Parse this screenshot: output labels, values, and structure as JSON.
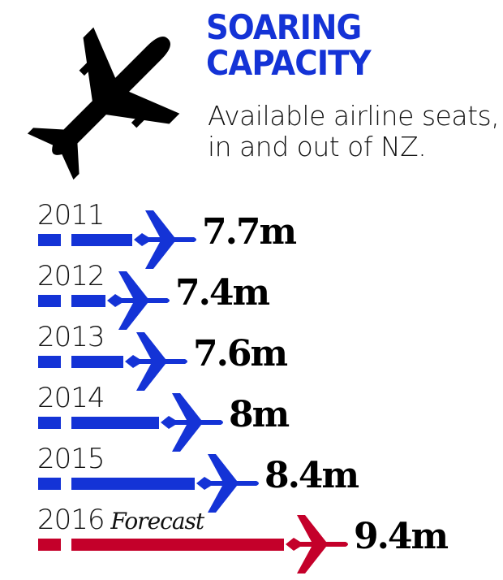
{
  "chart_data": {
    "type": "bar",
    "title": "SOARING CAPACITY",
    "subtitle": "Available airline seats, in and out of NZ.",
    "categories": [
      "2011",
      "2012",
      "2013",
      "2014",
      "2015",
      "2016"
    ],
    "category_notes": [
      "",
      "",
      "",
      "",
      "",
      "Forecast"
    ],
    "values": [
      7.7,
      7.4,
      7.6,
      8.0,
      8.4,
      9.4
    ],
    "data_labels": [
      "7.7m",
      "7.4m",
      "7.6m",
      "8m",
      "8.4m",
      "9.4m"
    ],
    "unit": "million seats",
    "orientation": "horizontal",
    "colors": [
      "#1433d6",
      "#1433d6",
      "#1433d6",
      "#1433d6",
      "#1433d6",
      "#c4002a"
    ],
    "icon": "airplane-icon"
  }
}
